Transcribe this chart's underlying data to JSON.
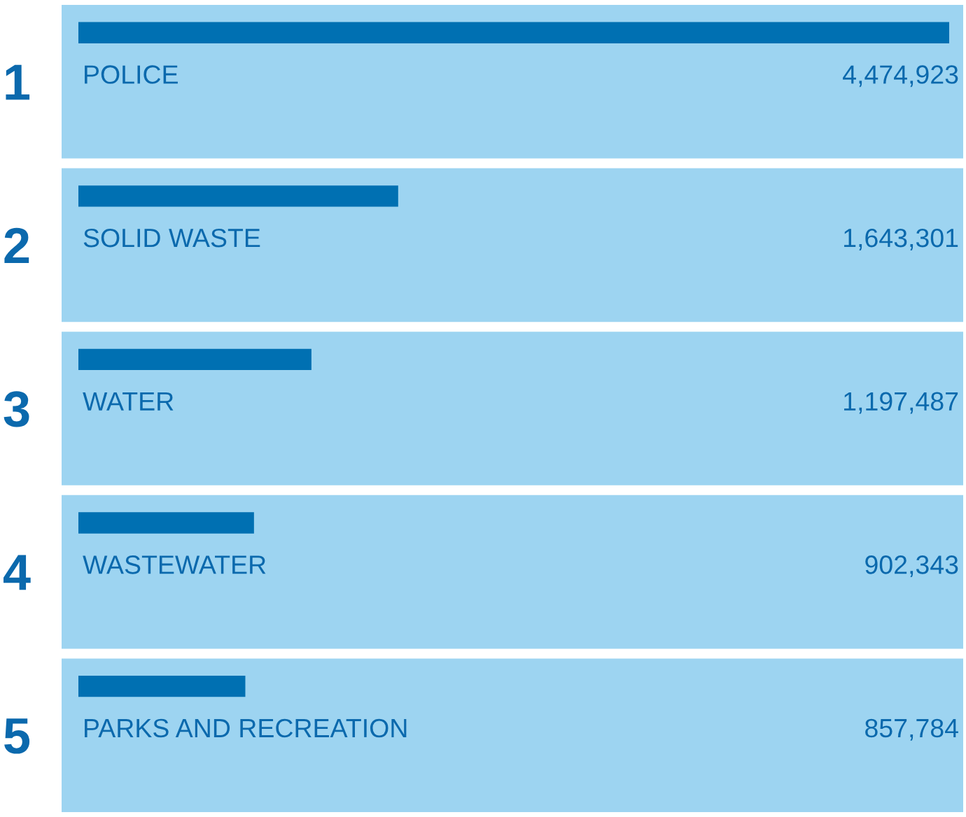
{
  "chart_data": {
    "type": "bar",
    "orientation": "horizontal",
    "categories": [
      "POLICE",
      "SOLID WASTE",
      "WATER",
      "WASTEWATER",
      "PARKS AND RECREATION"
    ],
    "values": [
      4474923,
      1643301,
      1197487,
      902343,
      857784
    ],
    "value_labels": [
      "4,474,923",
      "1,643,301",
      "1,197,487",
      "902,343",
      "857,784"
    ],
    "color": "#0070b2",
    "annotations": [
      "1",
      "2",
      "3",
      "4",
      "5"
    ]
  }
}
